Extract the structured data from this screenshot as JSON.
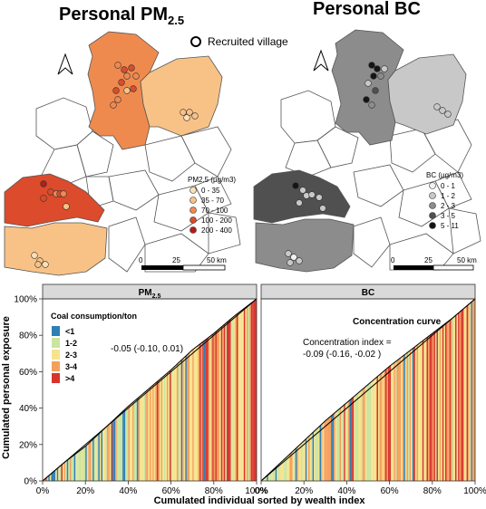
{
  "maps": {
    "pm": {
      "title_main": "Personal PM",
      "title_sub": "2.5",
      "legend_title": "PM2.5 (µg/m3)",
      "legend": [
        {
          "label": "0 - 35",
          "color": "#fbe0b8"
        },
        {
          "label": "35 - 70",
          "color": "#f8c287"
        },
        {
          "label": "70 - 100",
          "color": "#ef8a4f"
        },
        {
          "label": "100 - 200",
          "color": "#dc4b2b"
        },
        {
          "label": "200 - 400",
          "color": "#b21d1a"
        }
      ]
    },
    "bc": {
      "title": "Personal BC",
      "legend_title": "BC (µg/m3)",
      "legend": [
        {
          "label": "0 - 1",
          "color": "#f2f2f2"
        },
        {
          "label": "1 - 2",
          "color": "#c8c8c8"
        },
        {
          "label": "2 - 3",
          "color": "#8c8c8c"
        },
        {
          "label": "3 - 5",
          "color": "#505050"
        },
        {
          "label": "5 - 11",
          "color": "#151515"
        }
      ]
    },
    "recruited_label": "Recruited village",
    "scalebar": {
      "ticks": [
        "0",
        "25",
        "50 km"
      ]
    },
    "colors": {
      "boundary": "#555555",
      "village_outline": "#333333"
    }
  },
  "chart_data": [
    {
      "type": "bar",
      "panel": "PM",
      "strip_main": "PM",
      "strip_sub": "2.5",
      "annotation": "-0.05 (-0.10, 0.01)",
      "legend_title": "Coal consumption/ton",
      "legend": [
        {
          "label": "<1",
          "color": "#2f7fb5"
        },
        {
          "label": "1-2",
          "color": "#c9e5a0"
        },
        {
          "label": "2-3",
          "color": "#f6e38c"
        },
        {
          "label": "3-4",
          "color": "#f4a05c"
        },
        {
          "label": ">4",
          "color": "#d7352b"
        }
      ],
      "xlim": [
        0,
        100
      ],
      "ylim": [
        0,
        100
      ],
      "x_ticks": [
        "0%",
        "20%",
        "40%",
        "60%",
        "80%",
        "100%"
      ],
      "y_ticks": [
        "0%",
        "20%",
        "40%",
        "60%",
        "80%",
        "100%"
      ],
      "curve_x": [
        0,
        10,
        20,
        30,
        40,
        50,
        60,
        70,
        80,
        90,
        100
      ],
      "curve_y": [
        0,
        10,
        19,
        30,
        41,
        51,
        61,
        72,
        81,
        91,
        100
      ]
    },
    {
      "type": "bar",
      "panel": "BC",
      "strip_main": "BC",
      "strip_sub": "",
      "annotation_title": "Concentration curve",
      "annotation_line1": "Concentration index =",
      "annotation_line2": "-0.09 (-0.16, -0.02 )",
      "xlim": [
        0,
        100
      ],
      "ylim": [
        0,
        100
      ],
      "x_ticks": [
        "0%",
        "20%",
        "40%",
        "60%",
        "80%",
        "100%"
      ],
      "curve_x": [
        0,
        10,
        20,
        30,
        40,
        50,
        60,
        70,
        80,
        90,
        100
      ],
      "curve_y": [
        0,
        11,
        22,
        33,
        43,
        53,
        63,
        72,
        81,
        90,
        100
      ]
    }
  ],
  "axes": {
    "ylabel": "Cumulated personal exposure",
    "xlabel": "Cumulated individual sorted by wealth index"
  }
}
